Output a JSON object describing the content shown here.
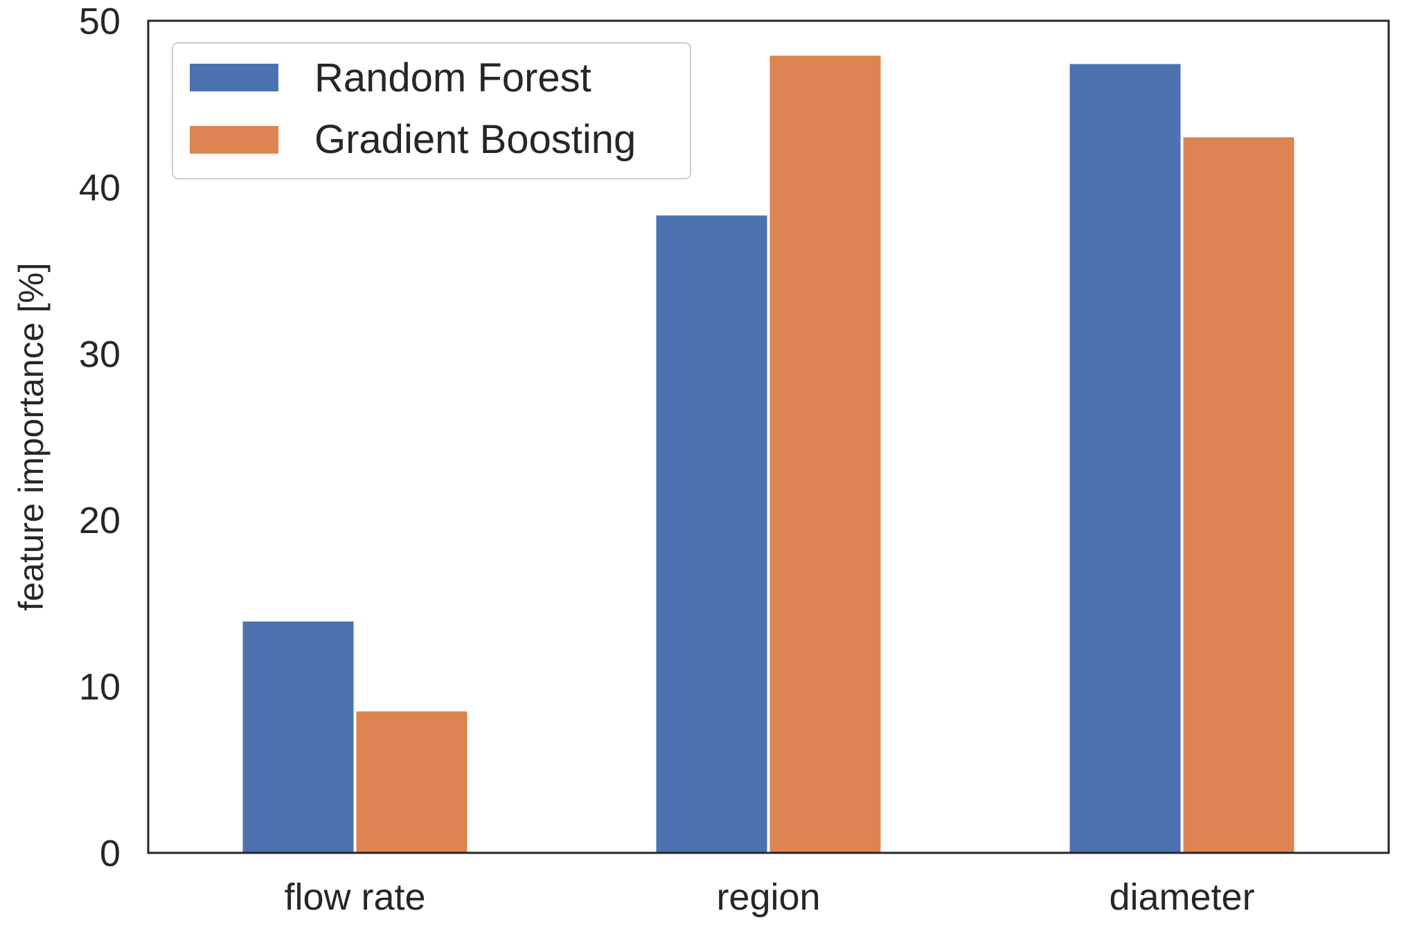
{
  "chart_data": {
    "type": "bar",
    "title": "",
    "xlabel": "",
    "ylabel": "feature importance [%]",
    "ylim": [
      0,
      50
    ],
    "yticks": [
      0,
      10,
      20,
      30,
      40,
      50
    ],
    "grid": false,
    "legend_position": "top-left",
    "categories": [
      "flow rate",
      "region",
      "diameter"
    ],
    "series": [
      {
        "name": "Random Forest",
        "color": "#4C72B0",
        "values": [
          13.9,
          38.3,
          47.4
        ]
      },
      {
        "name": "Gradient Boosting",
        "color": "#DD8452",
        "values": [
          8.5,
          47.9,
          43.0
        ]
      }
    ]
  }
}
